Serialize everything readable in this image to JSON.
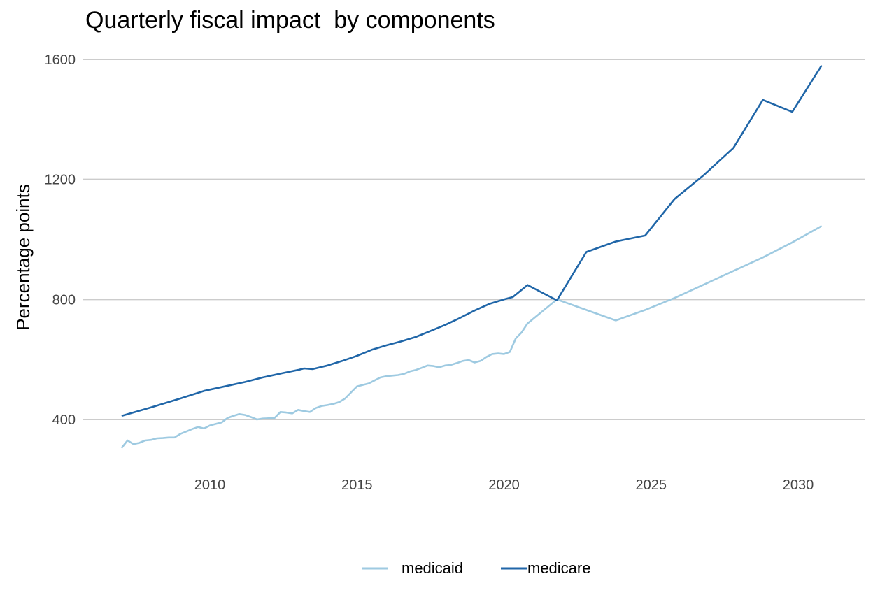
{
  "chart_data": {
    "type": "line",
    "title": "Quarterly fiscal impact  by components",
    "xlabel": "",
    "ylabel": "Percentage points",
    "xlim": [
      2006.5,
      2032.2
    ],
    "ylim": [
      240,
      1650
    ],
    "x_ticks": [
      2010,
      2015,
      2020,
      2025,
      2030
    ],
    "x_tick_labels": [
      "2010",
      "2015",
      "2020",
      "2025",
      "2030"
    ],
    "y_ticks": [
      400,
      800,
      1200,
      1600
    ],
    "y_tick_labels": [
      "400",
      "800",
      "1200",
      "1600"
    ],
    "grid": "horizontal major only",
    "legend_position": "bottom",
    "series": [
      {
        "name": "medicaid",
        "color": "#9ecae1",
        "x": [
          2007.0,
          2007.2,
          2007.4,
          2007.6,
          2007.8,
          2008.0,
          2008.2,
          2008.4,
          2008.6,
          2008.8,
          2009.0,
          2009.2,
          2009.4,
          2009.6,
          2009.8,
          2010.0,
          2010.2,
          2010.4,
          2010.6,
          2010.8,
          2011.0,
          2011.2,
          2011.4,
          2011.6,
          2011.8,
          2012.0,
          2012.2,
          2012.4,
          2012.6,
          2012.8,
          2013.0,
          2013.2,
          2013.4,
          2013.6,
          2013.8,
          2014.0,
          2014.2,
          2014.4,
          2014.6,
          2014.8,
          2015.0,
          2015.2,
          2015.4,
          2015.6,
          2015.8,
          2016.0,
          2016.2,
          2016.4,
          2016.6,
          2016.8,
          2017.0,
          2017.2,
          2017.4,
          2017.6,
          2017.8,
          2018.0,
          2018.2,
          2018.4,
          2018.6,
          2018.8,
          2019.0,
          2019.2,
          2019.4,
          2019.6,
          2019.8,
          2020.0,
          2020.2,
          2020.4,
          2020.6,
          2020.8,
          2021.8,
          2022.8,
          2023.8,
          2024.8,
          2025.8,
          2026.8,
          2027.8,
          2028.8,
          2029.8,
          2030.8
        ],
        "values": [
          305,
          330,
          318,
          322,
          330,
          332,
          337,
          338,
          340,
          340,
          352,
          360,
          368,
          375,
          370,
          380,
          385,
          390,
          405,
          412,
          418,
          415,
          408,
          400,
          403,
          404,
          405,
          425,
          423,
          420,
          432,
          428,
          425,
          438,
          445,
          448,
          452,
          458,
          470,
          490,
          510,
          515,
          520,
          530,
          540,
          544,
          546,
          548,
          552,
          560,
          565,
          572,
          580,
          578,
          574,
          580,
          582,
          588,
          595,
          598,
          590,
          595,
          608,
          618,
          620,
          618,
          625,
          670,
          690,
          720,
          800,
          765,
          730,
          765,
          805,
          850,
          895,
          940,
          990,
          1045
        ]
      },
      {
        "name": "medicare",
        "color": "#2066a8",
        "x": [
          2007.0,
          2008.0,
          2009.0,
          2009.8,
          2010.5,
          2011.2,
          2011.8,
          2012.5,
          2013.0,
          2013.2,
          2013.5,
          2014.0,
          2014.5,
          2015.0,
          2015.5,
          2016.0,
          2016.5,
          2017.0,
          2017.5,
          2018.0,
          2018.5,
          2019.0,
          2019.5,
          2020.0,
          2020.3,
          2020.8,
          2021.8,
          2022.8,
          2023.8,
          2024.8,
          2025.8,
          2026.8,
          2027.8,
          2028.8,
          2029.8,
          2030.8
        ],
        "values": [
          412,
          440,
          470,
          495,
          510,
          525,
          540,
          555,
          565,
          570,
          568,
          580,
          595,
          612,
          632,
          647,
          660,
          675,
          695,
          715,
          738,
          763,
          785,
          800,
          808,
          848,
          797,
          958,
          993,
          1013,
          1135,
          1215,
          1305,
          1465,
          1425,
          1580
        ]
      }
    ]
  }
}
